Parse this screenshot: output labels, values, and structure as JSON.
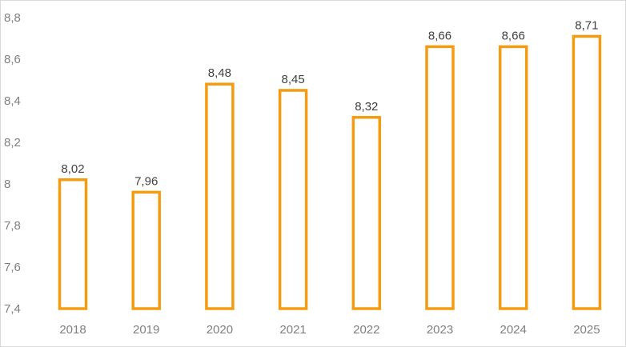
{
  "chart_data": {
    "type": "bar",
    "categories": [
      "2018",
      "2019",
      "2020",
      "2021",
      "2022",
      "2023",
      "2024",
      "2025"
    ],
    "values": [
      8.02,
      7.96,
      8.48,
      8.45,
      8.32,
      8.66,
      8.66,
      8.71
    ],
    "value_labels": [
      "8,02",
      "7,96",
      "8,48",
      "8,45",
      "8,32",
      "8,66",
      "8,66",
      "8,71"
    ],
    "y_ticks": [
      7.4,
      7.6,
      7.8,
      8,
      8.2,
      8.4,
      8.6,
      8.8
    ],
    "y_tick_labels": [
      "7,4",
      "7,6",
      "7,8",
      "8",
      "8,2",
      "8,4",
      "8,6",
      "8,8"
    ],
    "ylim": [
      7.4,
      8.8
    ],
    "title": "",
    "xlabel": "",
    "ylabel": "",
    "grid": false,
    "legend": "none",
    "bar_style": "outline",
    "bar_color": "#f39c12"
  }
}
